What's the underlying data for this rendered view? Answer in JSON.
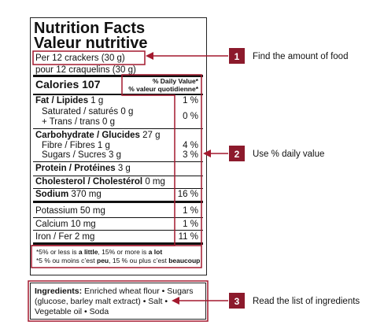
{
  "label": {
    "title": "Nutrition Facts",
    "title_fr": "Valeur nutritive",
    "serving": "Per 12 crackers (30 g)",
    "serving_fr": "pour 12 craquelins (30 g)",
    "calories": "Calories 107",
    "dv_header": "% Daily Value*",
    "dv_header_fr": "% valeur quotidienne*",
    "fat": {
      "name": "Fat / Lipides",
      "amount": "1 g",
      "dv": "1 %"
    },
    "saturated": "Saturated / saturés 0 g",
    "trans": "+ Trans / trans 0 g",
    "sat_trans_dv": "0 %",
    "carbohydrate": {
      "name": "Carbohydrate / Glucides",
      "amount": "27 g"
    },
    "fibre": {
      "name": "Fibre / Fibres 1 g",
      "dv": "4 %"
    },
    "sugars": {
      "name": "Sugars / Sucres 3 g",
      "dv": "3 %"
    },
    "protein": {
      "name": "Protein / Protéines",
      "amount": "3 g"
    },
    "cholesterol": {
      "name": "Cholesterol / Cholestérol",
      "amount": "0 mg"
    },
    "sodium": {
      "name": "Sodium",
      "amount": "370 mg",
      "dv": "16 %"
    },
    "potassium": {
      "name": "Potassium 50 mg",
      "dv": "1 %"
    },
    "calcium": {
      "name": "Calcium 10 mg",
      "dv": "1 %"
    },
    "iron": {
      "name": "Iron / Fer 2 mg",
      "dv": "11 %"
    },
    "footnote_en": [
      "*5% or less is ",
      "a little",
      ", 15% or more is ",
      "a lot"
    ],
    "footnote_fr": [
      "*5 % ou moins c’est ",
      "peu",
      ", 15 % ou plus c’est ",
      "beaucoup"
    ]
  },
  "ingredients": {
    "heading": "Ingredients:",
    "lines": [
      " Enriched wheat flour • Sugars",
      "(glucose, barley malt extract) • Salt •",
      "Vegetable oil • Soda"
    ]
  },
  "annotations": [
    {
      "number": "1",
      "text": "Find the amount of food"
    },
    {
      "number": "2",
      "text": "Use % daily value"
    },
    {
      "number": "3",
      "text": "Read the list of ingredients"
    }
  ]
}
